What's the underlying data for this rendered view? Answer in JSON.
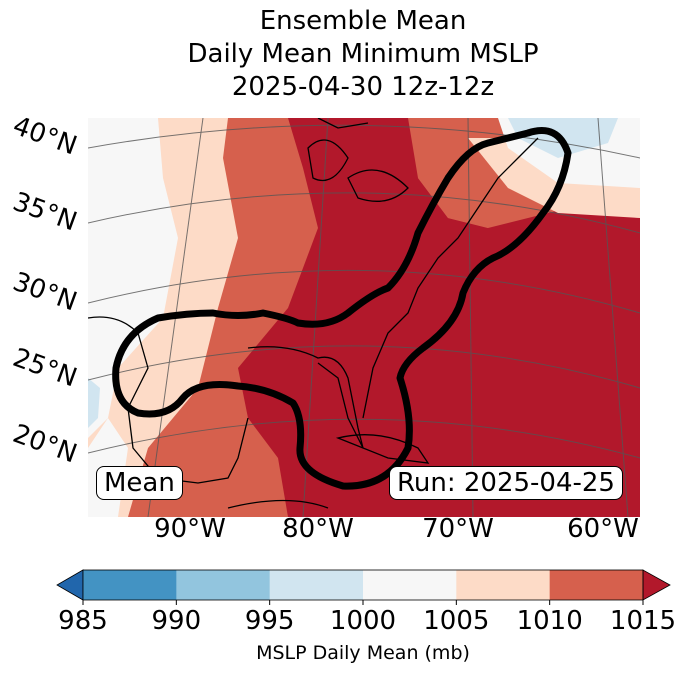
{
  "title": {
    "line1": "Ensemble Mean",
    "line2": "Daily Mean Minimum MSLP",
    "line3": "2025-04-30 12z-12z"
  },
  "lat_labels": [
    "40°N",
    "35°N",
    "30°N",
    "25°N",
    "20°N"
  ],
  "lon_labels": [
    "90°W",
    "80°W",
    "70°W",
    "60°W"
  ],
  "map": {
    "left_box": "Mean",
    "right_box": "Run: 2025-04-25"
  },
  "colorbar": {
    "label": "MSLP Daily Mean (mb)",
    "ticks": [
      "985",
      "990",
      "995",
      "1000",
      "1005",
      "1010",
      "1015"
    ],
    "colors": [
      "#2166ac",
      "#4393c3",
      "#92c5de",
      "#d1e5f0",
      "#f7f7f7",
      "#fddbc7",
      "#d6604d",
      "#b2182b"
    ]
  }
}
